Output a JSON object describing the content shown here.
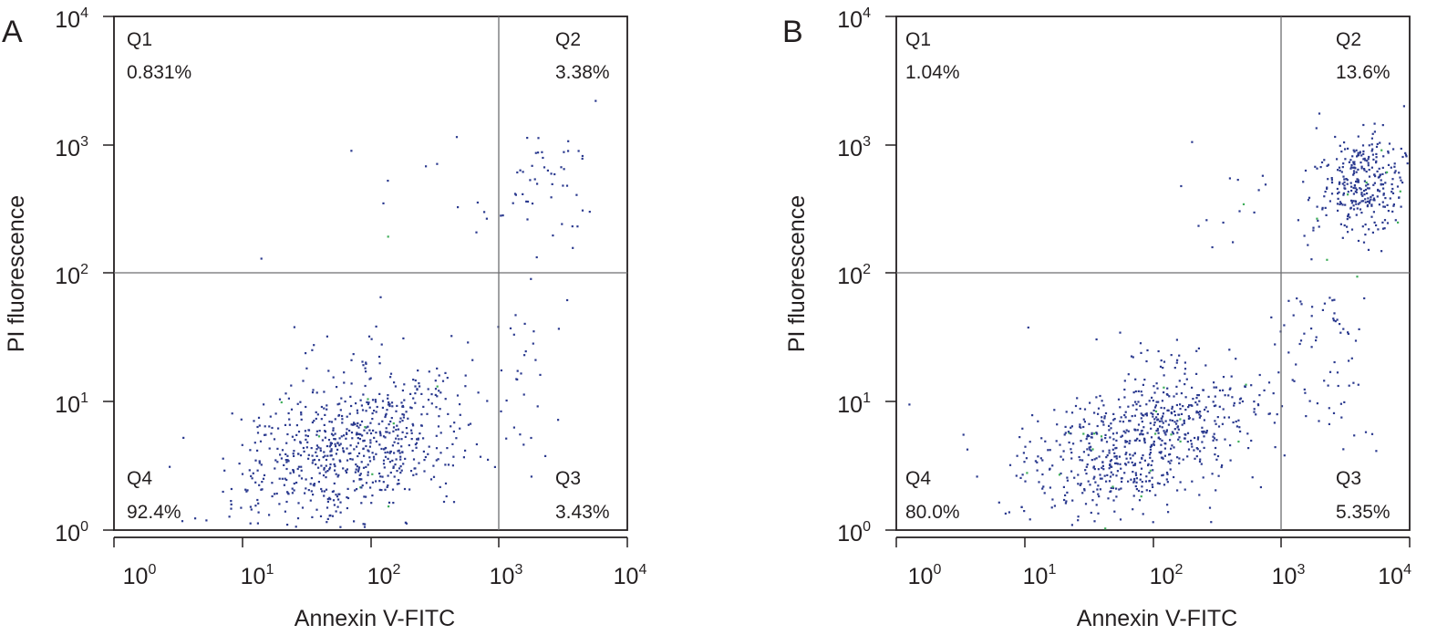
{
  "colors": {
    "dot": "#2b3a8f",
    "dot_green": "#3fae5a",
    "gate": "#6d6e71",
    "axis": "#231f20"
  },
  "chart_data": [
    {
      "type": "scatter",
      "panel_label": "A",
      "xlabel": "Annexin V-FITC",
      "ylabel": "PI fluorescence",
      "x_scale": "log",
      "y_scale": "log",
      "xlim": [
        0.6,
        10000
      ],
      "ylim": [
        1,
        10000
      ],
      "x_ticks": [
        1,
        10,
        100,
        1000,
        10000
      ],
      "y_ticks": [
        1,
        10,
        100,
        1000,
        10000
      ],
      "gate": {
        "x": 1000,
        "y": 100
      },
      "quadrants": [
        {
          "name": "Q1",
          "percent": "0.831%",
          "position": "top-left"
        },
        {
          "name": "Q2",
          "percent": "3.38%",
          "position": "top-right"
        },
        {
          "name": "Q3",
          "percent": "3.43%",
          "position": "bottom-right"
        },
        {
          "name": "Q4",
          "percent": "92.4%",
          "position": "bottom-left"
        }
      ],
      "clusters": [
        {
          "name": "Q4",
          "n": 760,
          "cx": 55,
          "cy": 4.5,
          "sx": 0.48,
          "sy": 0.33,
          "corr": 0.4
        },
        {
          "name": "Q2",
          "n": 50,
          "cx": 2000,
          "cy": 500,
          "sx": 0.25,
          "sy": 0.22,
          "corr": 0.2
        },
        {
          "name": "Q3",
          "n": 24,
          "cx": 1500,
          "cy": 18,
          "sx": 0.16,
          "sy": 0.42,
          "corr": 0.0
        },
        {
          "name": "Q1",
          "n": 8,
          "cx": 300,
          "cy": 300,
          "sx": 0.45,
          "sy": 0.3,
          "corr": 0.0
        }
      ],
      "points": [
        [
          10,
          130
        ],
        [
          95,
          65
        ],
        [
          400,
          1150
        ],
        [
          5500,
          2200
        ],
        [
          100,
          350
        ]
      ]
    },
    {
      "type": "scatter",
      "panel_label": "B",
      "xlabel": "Annexin V-FITC",
      "ylabel": "PI fluorescence",
      "x_scale": "log",
      "y_scale": "log",
      "xlim": [
        0.6,
        10000
      ],
      "ylim": [
        1,
        10000
      ],
      "x_ticks": [
        1,
        10,
        100,
        1000,
        10000
      ],
      "y_ticks": [
        1,
        10,
        100,
        1000,
        10000
      ],
      "gate": {
        "x": 1000,
        "y": 100
      },
      "quadrants": [
        {
          "name": "Q1",
          "percent": "1.04%",
          "position": "top-left"
        },
        {
          "name": "Q2",
          "percent": "13.6%",
          "position": "top-right"
        },
        {
          "name": "Q3",
          "percent": "5.35%",
          "position": "bottom-right"
        },
        {
          "name": "Q4",
          "percent": "80.0%",
          "position": "bottom-left"
        }
      ],
      "clusters": [
        {
          "name": "Q4",
          "n": 740,
          "cx": 60,
          "cy": 5,
          "sx": 0.48,
          "sy": 0.32,
          "corr": 0.45
        },
        {
          "name": "Q2",
          "n": 320,
          "cx": 4000,
          "cy": 500,
          "sx": 0.22,
          "sy": 0.18,
          "corr": 0.2
        },
        {
          "name": "Q3",
          "n": 70,
          "cx": 2000,
          "cy": 25,
          "sx": 0.2,
          "sy": 0.4,
          "corr": 0.0
        },
        {
          "name": "Q1",
          "n": 14,
          "cx": 300,
          "cy": 250,
          "sx": 0.35,
          "sy": 0.3,
          "corr": 0.0
        }
      ],
      "points": [
        [
          0.75,
          9.5
        ],
        [
          9000,
          2000
        ],
        [
          1800,
          1750
        ]
      ]
    }
  ]
}
